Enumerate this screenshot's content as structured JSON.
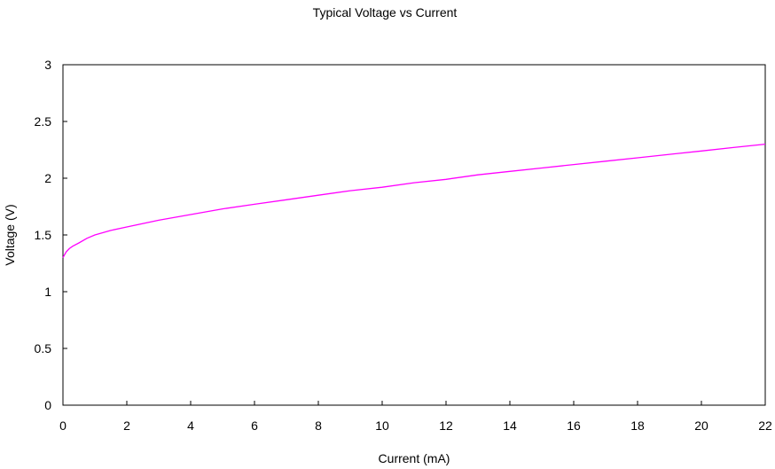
{
  "chart_data": {
    "type": "line",
    "title": "Typical Voltage  vs Current",
    "xlabel": "Current (mA)",
    "ylabel": "Voltage (V)",
    "xlim": [
      0,
      22
    ],
    "ylim": [
      0,
      3
    ],
    "xticks": [
      0,
      2,
      4,
      6,
      8,
      10,
      12,
      14,
      16,
      18,
      20,
      22
    ],
    "yticks": [
      0,
      0.5,
      1,
      1.5,
      2,
      2.5,
      3
    ],
    "ytick_labels": [
      "0",
      "0.5",
      "1",
      "1.5",
      "2",
      "2.5",
      "3"
    ],
    "grid": false,
    "series": [
      {
        "color": "#ff00ff",
        "x": [
          0,
          0.1,
          0.2,
          0.3,
          0.5,
          0.75,
          1,
          1.5,
          2,
          3,
          4,
          5,
          6,
          7,
          8,
          9,
          10,
          11,
          12,
          13,
          14,
          15,
          16,
          17,
          18,
          19,
          20,
          21,
          22
        ],
        "y": [
          1.3,
          1.35,
          1.38,
          1.4,
          1.43,
          1.47,
          1.5,
          1.54,
          1.57,
          1.63,
          1.68,
          1.73,
          1.77,
          1.81,
          1.85,
          1.89,
          1.92,
          1.96,
          1.99,
          2.03,
          2.06,
          2.09,
          2.12,
          2.15,
          2.18,
          2.21,
          2.24,
          2.27,
          2.3
        ]
      }
    ]
  }
}
